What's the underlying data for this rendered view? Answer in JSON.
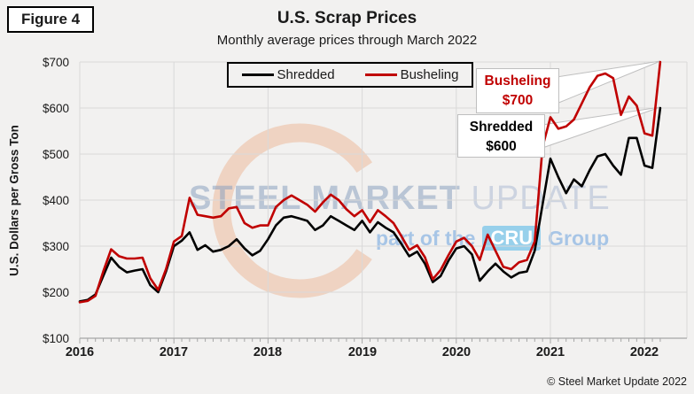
{
  "figure_label": "Figure 4",
  "title": "U.S. Scrap Prices",
  "subtitle": "Monthly average prices through March 2022",
  "copyright": "© Steel Market Update 2022",
  "watermark": {
    "brand_bold": "STEEL MARKET",
    "brand_light": "UPDATE",
    "tagline_prefix": "part of the",
    "cru": "CRU",
    "tagline_suffix": "Group"
  },
  "callouts": [
    {
      "label": "Busheling",
      "value": "$700",
      "color": "#C00000"
    },
    {
      "label": "Shredded",
      "value": "$600",
      "color": "#000000"
    }
  ],
  "chart_data": {
    "type": "line",
    "title": "U.S. Scrap Prices",
    "subtitle": "Monthly average prices through March 2022",
    "xlabel": "",
    "ylabel": "U.S. Dollars per Gross Ton",
    "ylim": [
      100,
      700
    ],
    "ytick_interval": 100,
    "yticks": [
      "$700",
      "$600",
      "$500",
      "$400",
      "$300",
      "$200",
      "$100"
    ],
    "xticks": [
      "2016",
      "2017",
      "2018",
      "2019",
      "2020",
      "2021",
      "2022"
    ],
    "grid": true,
    "legend_position": "top-center",
    "x_frequency": "monthly",
    "x_start": "2016-01",
    "x_end": "2022-03",
    "months": [
      "2016-01",
      "2016-02",
      "2016-03",
      "2016-04",
      "2016-05",
      "2016-06",
      "2016-07",
      "2016-08",
      "2016-09",
      "2016-10",
      "2016-11",
      "2016-12",
      "2017-01",
      "2017-02",
      "2017-03",
      "2017-04",
      "2017-05",
      "2017-06",
      "2017-07",
      "2017-08",
      "2017-09",
      "2017-10",
      "2017-11",
      "2017-12",
      "2018-01",
      "2018-02",
      "2018-03",
      "2018-04",
      "2018-05",
      "2018-06",
      "2018-07",
      "2018-08",
      "2018-09",
      "2018-10",
      "2018-11",
      "2018-12",
      "2019-01",
      "2019-02",
      "2019-03",
      "2019-04",
      "2019-05",
      "2019-06",
      "2019-07",
      "2019-08",
      "2019-09",
      "2019-10",
      "2019-11",
      "2019-12",
      "2020-01",
      "2020-02",
      "2020-03",
      "2020-04",
      "2020-05",
      "2020-06",
      "2020-07",
      "2020-08",
      "2020-09",
      "2020-10",
      "2020-11",
      "2020-12",
      "2021-01",
      "2021-02",
      "2021-03",
      "2021-04",
      "2021-05",
      "2021-06",
      "2021-07",
      "2021-08",
      "2021-09",
      "2021-10",
      "2021-11",
      "2021-12",
      "2022-01",
      "2022-02",
      "2022-03"
    ],
    "series": [
      {
        "name": "Shredded",
        "color": "#000000",
        "final_label": "Shredded $600",
        "values": [
          180,
          183,
          195,
          235,
          275,
          255,
          243,
          247,
          250,
          215,
          200,
          245,
          300,
          312,
          330,
          292,
          302,
          288,
          292,
          300,
          315,
          295,
          280,
          290,
          315,
          345,
          362,
          365,
          360,
          355,
          335,
          345,
          365,
          355,
          345,
          335,
          355,
          330,
          352,
          340,
          330,
          305,
          278,
          288,
          262,
          222,
          235,
          268,
          295,
          300,
          282,
          225,
          245,
          262,
          245,
          232,
          242,
          245,
          290,
          390,
          490,
          450,
          415,
          445,
          430,
          465,
          495,
          500,
          475,
          455,
          535,
          535,
          475,
          470,
          600
        ]
      },
      {
        "name": "Busheling",
        "color": "#C00000",
        "final_label": "Busheling $700",
        "values": [
          178,
          181,
          192,
          245,
          293,
          278,
          273,
          273,
          275,
          230,
          205,
          250,
          310,
          322,
          405,
          368,
          365,
          362,
          365,
          382,
          385,
          350,
          340,
          345,
          345,
          385,
          400,
          410,
          400,
          390,
          375,
          395,
          412,
          400,
          380,
          365,
          378,
          352,
          378,
          365,
          350,
          322,
          292,
          302,
          276,
          228,
          248,
          280,
          310,
          318,
          300,
          270,
          325,
          290,
          255,
          250,
          265,
          270,
          310,
          515,
          580,
          555,
          560,
          575,
          610,
          645,
          670,
          675,
          665,
          585,
          625,
          605,
          545,
          540,
          700
        ]
      }
    ]
  }
}
